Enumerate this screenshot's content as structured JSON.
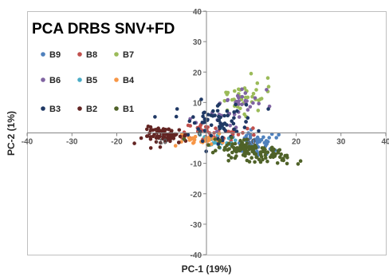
{
  "chart_data": {
    "type": "scatter",
    "title": "PCA DRBS SNV+FD",
    "xlabel": "PC-1 (19%)",
    "ylabel": "PC-2 (1%)",
    "xlim": [
      -40,
      40
    ],
    "ylim": [
      -40,
      40
    ],
    "x_ticks": [
      "-40",
      "-30",
      "-20",
      "-10",
      "0",
      "10",
      "20",
      "30",
      "40"
    ],
    "y_ticks": [
      "40",
      "30",
      "20",
      "10",
      "0",
      "-10",
      "-20",
      "-30",
      "-40"
    ],
    "grid": false,
    "axes_cross_at_origin": true,
    "legend_position": "top-left",
    "series": [
      {
        "name": "B9",
        "color": "#4F81BD",
        "cx": 11,
        "cy": -3,
        "sx": 2.5,
        "sy": 1.6,
        "n": 55
      },
      {
        "name": "B8",
        "color": "#C0504D",
        "cx": 2,
        "cy": 0,
        "sx": 3.5,
        "sy": 1.6,
        "n": 45
      },
      {
        "name": "B7",
        "color": "#9BBB59",
        "cx": 9,
        "cy": 12,
        "sx": 2.8,
        "sy": 2.8,
        "n": 40
      },
      {
        "name": "B6",
        "color": "#8064A2",
        "cx": 7,
        "cy": 9,
        "sx": 3.2,
        "sy": 3.0,
        "n": 40
      },
      {
        "name": "B5",
        "color": "#4BACC6",
        "cx": 2,
        "cy": -2,
        "sx": 2.0,
        "sy": 1.2,
        "n": 20
      },
      {
        "name": "B4",
        "color": "#F79646",
        "cx": -1,
        "cy": -2,
        "sx": 3.0,
        "sy": 1.2,
        "n": 30
      },
      {
        "name": "B3",
        "color": "#1F3864",
        "cx": 2,
        "cy": 4,
        "sx": 4.5,
        "sy": 3.2,
        "n": 70
      },
      {
        "name": "B2",
        "color": "#632523",
        "cx": -9,
        "cy": -1,
        "sx": 2.5,
        "sy": 1.4,
        "n": 70
      },
      {
        "name": "B1",
        "color": "#4F6228",
        "cx": 10,
        "cy": -6,
        "sx": 4.0,
        "sy": 1.5,
        "n": 130
      }
    ]
  }
}
